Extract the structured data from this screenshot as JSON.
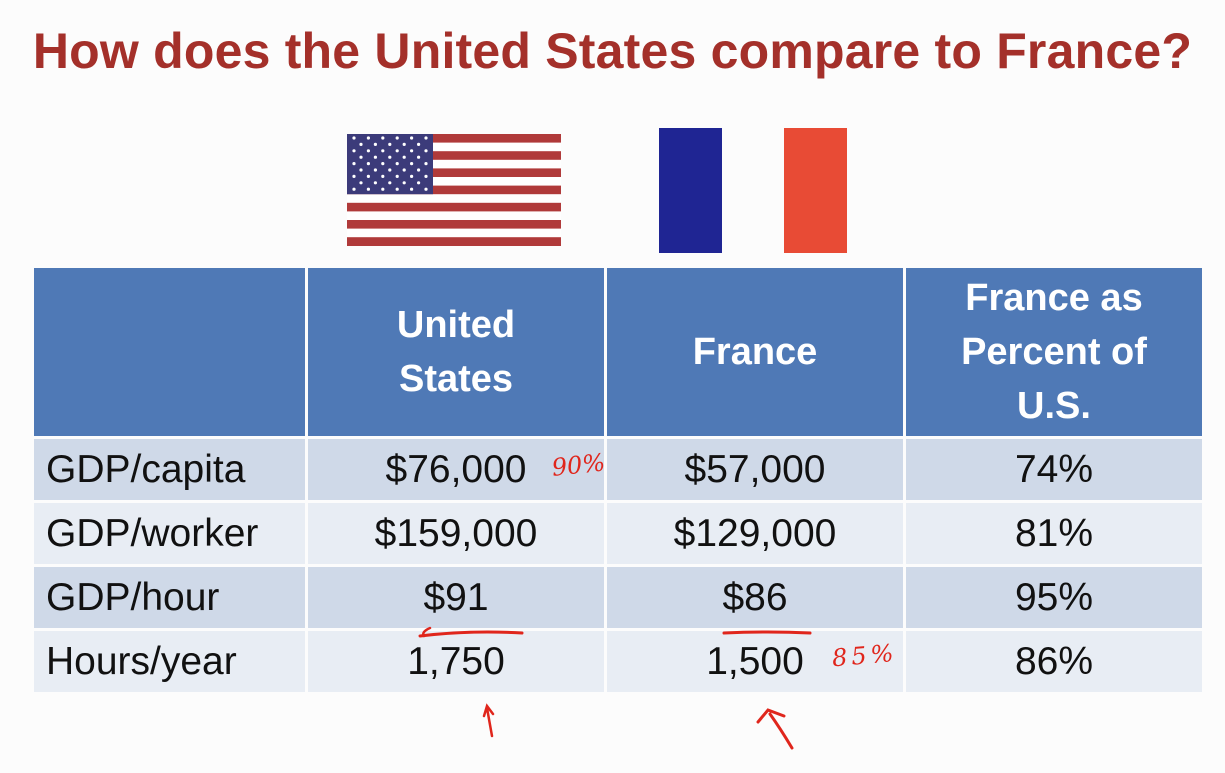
{
  "title": "How does the United States compare to France?",
  "flags": {
    "us": "us-flag",
    "fr": "france-flag"
  },
  "table": {
    "headers": [
      "",
      "United States",
      "France",
      "France as Percent of U.S."
    ],
    "header_lines": {
      "us": [
        "United",
        "States"
      ],
      "fr": [
        "France"
      ],
      "pct": [
        "France as",
        "Percent of",
        "U.S."
      ]
    },
    "rows": [
      {
        "label": "GDP/capita",
        "us": "$76,000",
        "fr": "$57,000",
        "pct": "74%"
      },
      {
        "label": "GDP/worker",
        "us": "$159,000",
        "fr": "$129,000",
        "pct": "81%"
      },
      {
        "label": "GDP/hour",
        "us": "$91",
        "fr": "$86",
        "pct": "95%"
      },
      {
        "label": "Hours/year",
        "us": "1,750",
        "fr": "1,500",
        "pct": "86%"
      }
    ]
  },
  "annotations": {
    "note_90": "90%",
    "note_85": "85%",
    "color": "#e0261c"
  },
  "colors": {
    "title": "#a4302a",
    "header_bg": "#4f79b6",
    "row_dark": "#cfd9e8",
    "row_light": "#e8edf4",
    "fr_blue": "#1f2593",
    "fr_red": "#e84b35",
    "us_red": "#b03a3a",
    "us_blue": "#3c3b7a"
  }
}
